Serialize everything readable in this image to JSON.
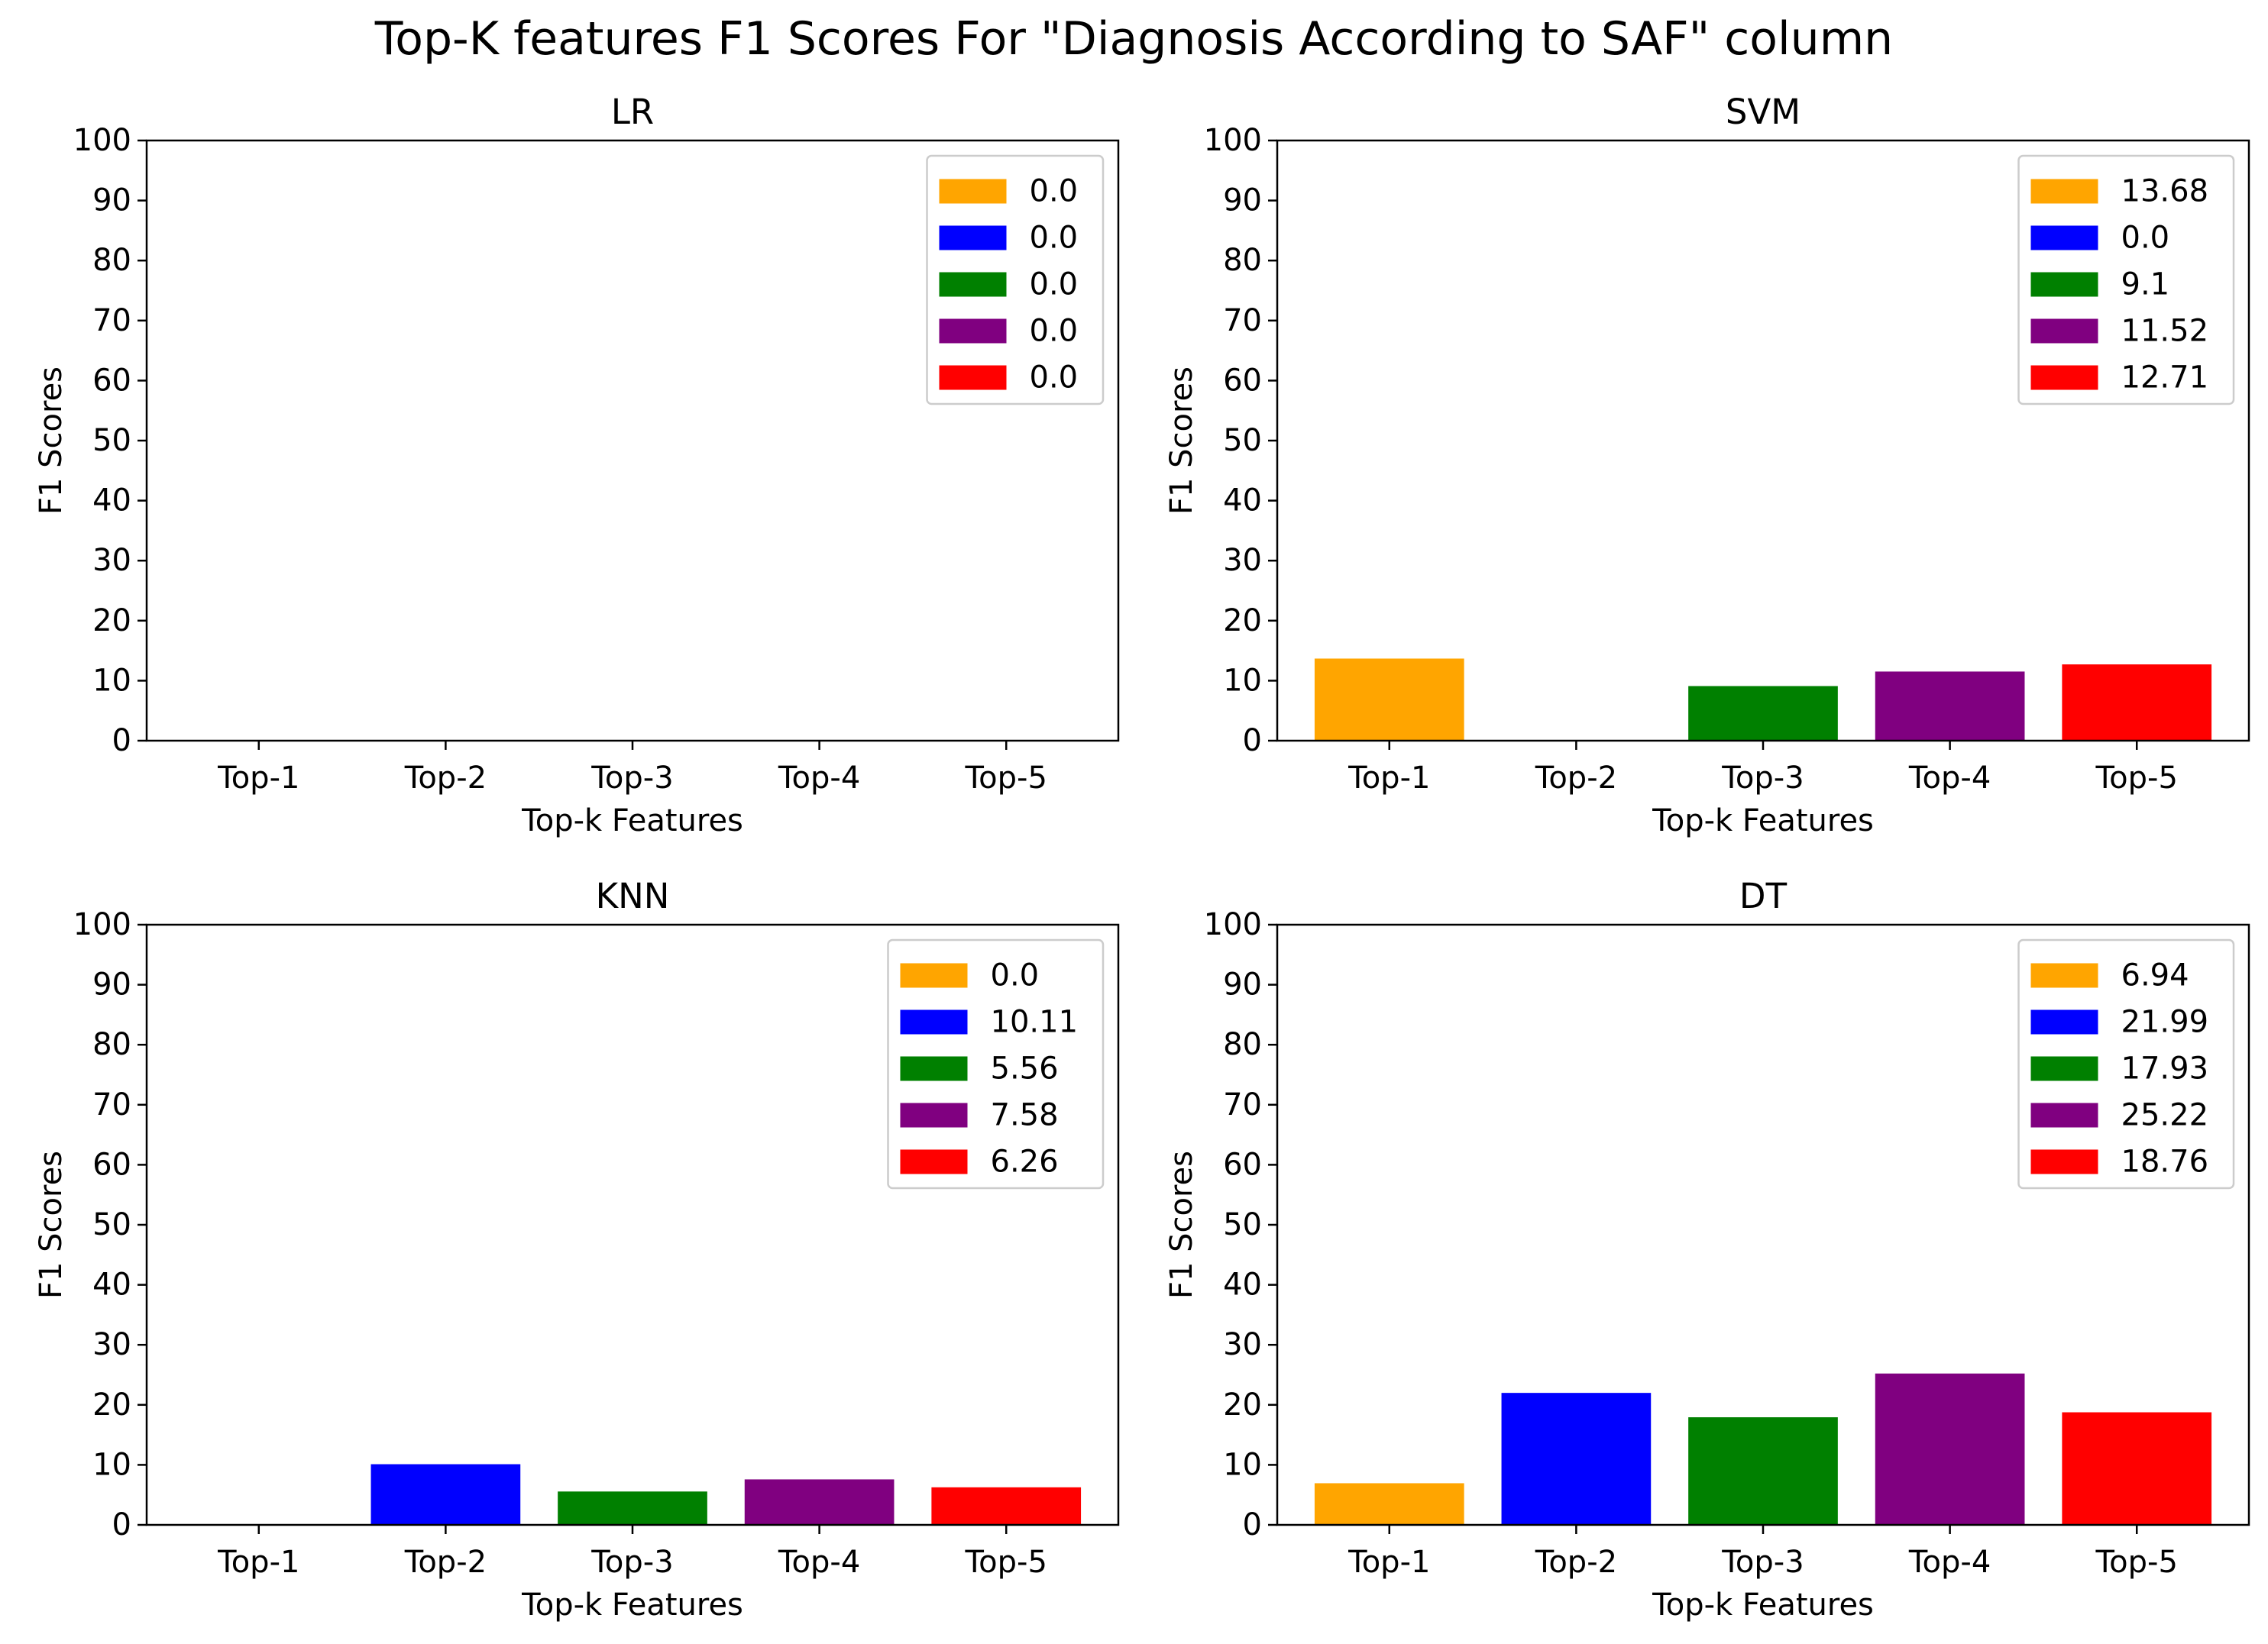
{
  "figure": {
    "title": "Top-K features F1 Scores For \"Diagnosis According to SAF\" column"
  },
  "colors": [
    "#ffa500",
    "#0000ff",
    "#008000",
    "#800080",
    "#ff0000"
  ],
  "chart_data": [
    {
      "type": "bar",
      "title": "LR",
      "xlabel": "Top-k Features",
      "ylabel": "F1 Scores",
      "ylim": [
        0,
        100
      ],
      "yticks": [
        0,
        10,
        20,
        30,
        40,
        50,
        60,
        70,
        80,
        90,
        100
      ],
      "categories": [
        "Top-1",
        "Top-2",
        "Top-3",
        "Top-4",
        "Top-5"
      ],
      "values": [
        0.0,
        0.0,
        0.0,
        0.0,
        0.0
      ],
      "legend": [
        "0.0",
        "0.0",
        "0.0",
        "0.0",
        "0.0"
      ],
      "legend_position": "upper right",
      "grid": false
    },
    {
      "type": "bar",
      "title": "SVM",
      "xlabel": "Top-k Features",
      "ylabel": "F1 Scores",
      "ylim": [
        0,
        100
      ],
      "yticks": [
        0,
        10,
        20,
        30,
        40,
        50,
        60,
        70,
        80,
        90,
        100
      ],
      "categories": [
        "Top-1",
        "Top-2",
        "Top-3",
        "Top-4",
        "Top-5"
      ],
      "values": [
        13.68,
        0.0,
        9.1,
        11.52,
        12.71
      ],
      "legend": [
        "13.68",
        "0.0",
        "9.1",
        "11.52",
        "12.71"
      ],
      "legend_position": "upper right",
      "grid": false
    },
    {
      "type": "bar",
      "title": "KNN",
      "xlabel": "Top-k Features",
      "ylabel": "F1 Scores",
      "ylim": [
        0,
        100
      ],
      "yticks": [
        0,
        10,
        20,
        30,
        40,
        50,
        60,
        70,
        80,
        90,
        100
      ],
      "categories": [
        "Top-1",
        "Top-2",
        "Top-3",
        "Top-4",
        "Top-5"
      ],
      "values": [
        0.0,
        10.11,
        5.56,
        7.58,
        6.26
      ],
      "legend": [
        "0.0",
        "10.11",
        "5.56",
        "7.58",
        "6.26"
      ],
      "legend_position": "upper right",
      "grid": false
    },
    {
      "type": "bar",
      "title": "DT",
      "xlabel": "Top-k Features",
      "ylabel": "F1 Scores",
      "ylim": [
        0,
        100
      ],
      "yticks": [
        0,
        10,
        20,
        30,
        40,
        50,
        60,
        70,
        80,
        90,
        100
      ],
      "categories": [
        "Top-1",
        "Top-2",
        "Top-3",
        "Top-4",
        "Top-5"
      ],
      "values": [
        6.94,
        21.99,
        17.93,
        25.22,
        18.76
      ],
      "legend": [
        "6.94",
        "21.99",
        "17.93",
        "25.22",
        "18.76"
      ],
      "legend_position": "upper right",
      "grid": false
    }
  ]
}
